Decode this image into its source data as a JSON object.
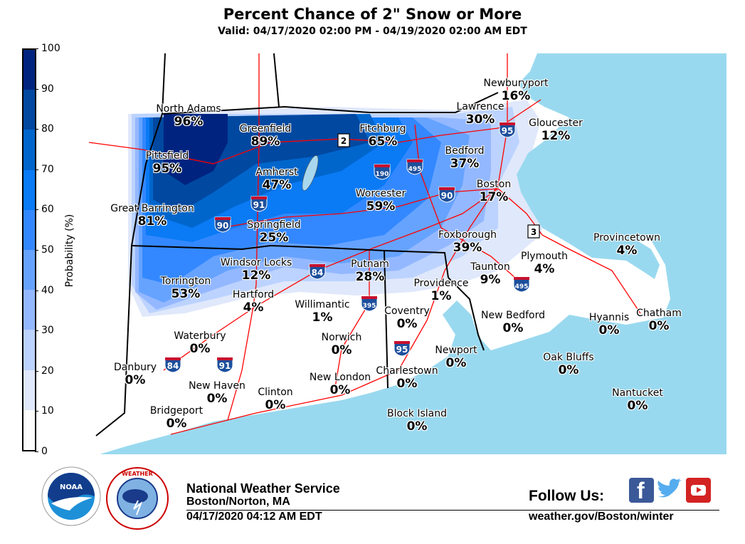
{
  "title": "Percent Chance of 2\" Snow or More",
  "subtitle": "Valid: 04/17/2020 02:00 PM - 04/19/2020 02:00 AM EDT",
  "colorbar": {
    "label": "Probability (%)",
    "ticks": [
      "0",
      "10",
      "20",
      "30",
      "40",
      "50",
      "60",
      "70",
      "80",
      "90",
      "100"
    ],
    "colors": [
      "#fdfdfd",
      "#e0e8fb",
      "#bcd3ff",
      "#94b8ff",
      "#66a3ff",
      "#3388ff",
      "#0a7af5",
      "#0066cc",
      "#0048a0",
      "#00237f"
    ]
  },
  "map_colors": {
    "ocean": "#99d9ef",
    "land": "#ffffff",
    "roads": "#ff0000",
    "state_borders": "#000000",
    "county_borders": "#555555"
  },
  "cities": [
    {
      "name": "North Adams",
      "value": "96%"
    },
    {
      "name": "Greenfield",
      "value": "89%"
    },
    {
      "name": "Fitchburg",
      "value": "65%"
    },
    {
      "name": "Lawrence",
      "value": "30%"
    },
    {
      "name": "Newburyport",
      "value": "16%"
    },
    {
      "name": "Gloucester",
      "value": "12%"
    },
    {
      "name": "Pittsfield",
      "value": "95%"
    },
    {
      "name": "Amherst",
      "value": "47%"
    },
    {
      "name": "Bedford",
      "value": "37%"
    },
    {
      "name": "Worcester",
      "value": "59%"
    },
    {
      "name": "Boston",
      "value": "17%"
    },
    {
      "name": "Great Barrington",
      "value": "81%"
    },
    {
      "name": "Springfield",
      "value": "25%"
    },
    {
      "name": "Foxborough",
      "value": "39%"
    },
    {
      "name": "Provincetown",
      "value": "4%"
    },
    {
      "name": "Plymouth",
      "value": "4%"
    },
    {
      "name": "Windsor Locks",
      "value": "12%"
    },
    {
      "name": "Putnam",
      "value": "28%"
    },
    {
      "name": "Taunton",
      "value": "9%"
    },
    {
      "name": "Torrington",
      "value": "53%"
    },
    {
      "name": "Providence",
      "value": "1%"
    },
    {
      "name": "Hartford",
      "value": "4%"
    },
    {
      "name": "Willimantic",
      "value": "1%"
    },
    {
      "name": "Coventry",
      "value": "0%"
    },
    {
      "name": "New Bedford",
      "value": "0%"
    },
    {
      "name": "Hyannis",
      "value": "0%"
    },
    {
      "name": "Chatham",
      "value": "0%"
    },
    {
      "name": "Waterbury",
      "value": "0%"
    },
    {
      "name": "Norwich",
      "value": "0%"
    },
    {
      "name": "Newport",
      "value": "0%"
    },
    {
      "name": "Oak Bluffs",
      "value": "0%"
    },
    {
      "name": "Danbury",
      "value": "0%"
    },
    {
      "name": "Charlestown",
      "value": "0%"
    },
    {
      "name": "New London",
      "value": "0%"
    },
    {
      "name": "New Haven",
      "value": "0%"
    },
    {
      "name": "Clinton",
      "value": "0%"
    },
    {
      "name": "Nantucket",
      "value": "0%"
    },
    {
      "name": "Bridgeport",
      "value": "0%"
    },
    {
      "name": "Block Island",
      "value": "0%"
    }
  ],
  "highway_shields": [
    {
      "route": "2",
      "type": "state"
    },
    {
      "route": "190",
      "type": "interstate"
    },
    {
      "route": "495",
      "type": "interstate"
    },
    {
      "route": "90",
      "type": "interstate"
    },
    {
      "route": "95",
      "type": "interstate"
    },
    {
      "route": "3",
      "type": "state"
    },
    {
      "route": "91",
      "type": "interstate"
    },
    {
      "route": "90",
      "type": "interstate"
    },
    {
      "route": "84",
      "type": "interstate"
    },
    {
      "route": "395",
      "type": "interstate"
    },
    {
      "route": "495",
      "type": "interstate"
    },
    {
      "route": "95",
      "type": "interstate"
    },
    {
      "route": "84",
      "type": "interstate"
    },
    {
      "route": "91",
      "type": "interstate"
    }
  ],
  "footer": {
    "office": "National Weather Service",
    "location": "Boston/Norton, MA",
    "issued": "04/17/2020 04:12 AM EDT",
    "follow": "Follow Us:",
    "url": "weather.gov/Boston/winter",
    "logos": [
      "NOAA",
      "NATIONAL WEATHER SERVICE"
    ],
    "social": [
      "facebook-icon",
      "twitter-icon",
      "youtube-icon"
    ]
  }
}
